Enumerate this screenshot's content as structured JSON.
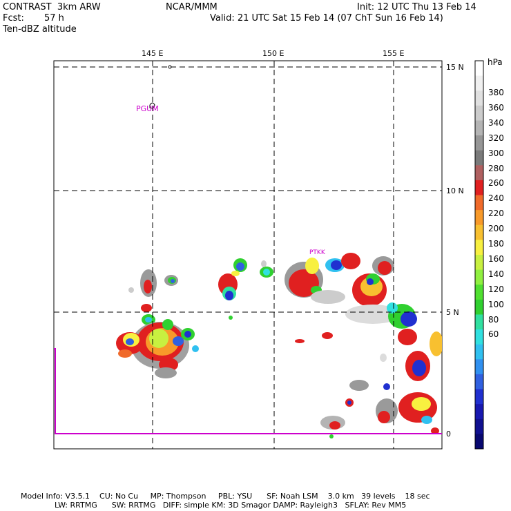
{
  "header": {
    "model": "CONTRAST  3km ARW",
    "center": "NCAR/MMM",
    "init": "Init: 12 UTC Thu 13 Feb 14",
    "fcst_label": "Fcst:",
    "fcst_value": "57 h",
    "valid": "Valid: 21 UTC Sat 15 Feb 14 (07 ChT Sun 16 Feb 14)",
    "field": "Ten-dBZ altitude"
  },
  "map": {
    "lon_labels": [
      "145 E",
      "150 E",
      "155 E"
    ],
    "lat_labels": [
      "15 N",
      "10 N",
      "5 N",
      "0"
    ],
    "stations": [
      "PGUM",
      "PTKK"
    ],
    "colors": {
      "station": "#cc00cc",
      "grid": "#000000",
      "coast": "#000000",
      "equator": "#cc00cc"
    }
  },
  "colorbar": {
    "unit": "hPa",
    "labels": [
      "380",
      "360",
      "340",
      "320",
      "300",
      "280",
      "260",
      "240",
      "220",
      "200",
      "180",
      "160",
      "140",
      "120",
      "100",
      "80",
      "60"
    ],
    "colors": [
      "#ffffff",
      "#f0f0f0",
      "#e0e0e0",
      "#cccccc",
      "#b4b4b4",
      "#969696",
      "#7a7a7a",
      "#b06060",
      "#e02020",
      "#f06a2a",
      "#f89a2a",
      "#f8c030",
      "#f8f040",
      "#c8f040",
      "#90f040",
      "#50e030",
      "#30d030",
      "#30e0a0",
      "#30e0e0",
      "#30c0f0",
      "#3090f0",
      "#3060e0",
      "#2030d0",
      "#1818b0",
      "#101090",
      "#080870"
    ]
  },
  "footer": {
    "line1": "Model Info: V3.5.1    CU: No Cu     MP: Thompson     PBL: YSU      SF: Noah LSM    3.0 km   39 levels    18 sec",
    "line2": "              LW: RRTMG      SW: RRTMG   DIFF: simple KM: 3D Smagor DAMP: Rayleigh3   SFLAY: Rev MM5"
  }
}
